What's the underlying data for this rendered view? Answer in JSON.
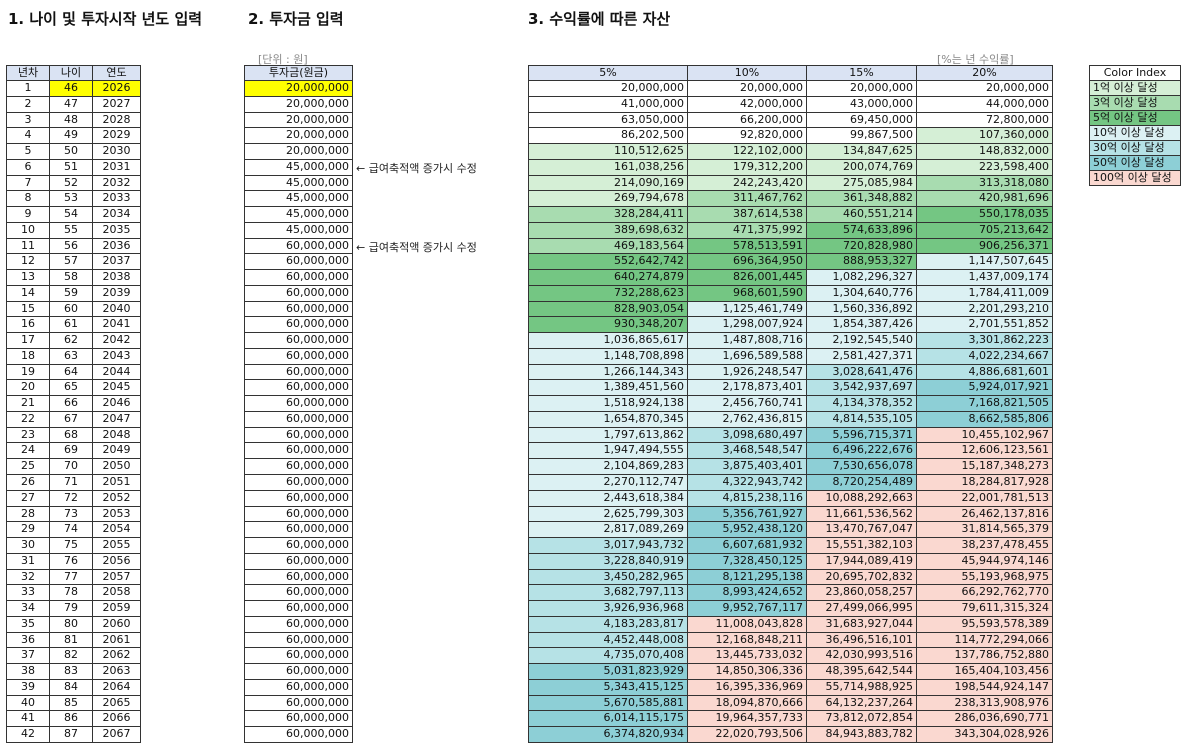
{
  "titles": [
    "1. 나이 및 투자시작 년도 입력",
    "2. 투자금 입력",
    "3. 수익률에 따른 자산"
  ],
  "unit_note": "[단위 : 원]",
  "rate_note": "[%는 년 수익률]",
  "annotations": [
    "← 급여축적액 증가시 수정",
    "← 급여축적액 증가시 수정"
  ],
  "table1": {
    "headers": [
      "년차",
      "나이",
      "연도"
    ],
    "rows": [
      [
        "1",
        "46",
        "2026"
      ],
      [
        "2",
        "47",
        "2027"
      ],
      [
        "3",
        "48",
        "2028"
      ],
      [
        "4",
        "49",
        "2029"
      ],
      [
        "5",
        "50",
        "2030"
      ],
      [
        "6",
        "51",
        "2031"
      ],
      [
        "7",
        "52",
        "2032"
      ],
      [
        "8",
        "53",
        "2033"
      ],
      [
        "9",
        "54",
        "2034"
      ],
      [
        "10",
        "55",
        "2035"
      ],
      [
        "11",
        "56",
        "2036"
      ],
      [
        "12",
        "57",
        "2037"
      ],
      [
        "13",
        "58",
        "2038"
      ],
      [
        "14",
        "59",
        "2039"
      ],
      [
        "15",
        "60",
        "2040"
      ],
      [
        "16",
        "61",
        "2041"
      ],
      [
        "17",
        "62",
        "2042"
      ],
      [
        "18",
        "63",
        "2043"
      ],
      [
        "19",
        "64",
        "2044"
      ],
      [
        "20",
        "65",
        "2045"
      ],
      [
        "21",
        "66",
        "2046"
      ],
      [
        "22",
        "67",
        "2047"
      ],
      [
        "23",
        "68",
        "2048"
      ],
      [
        "24",
        "69",
        "2049"
      ],
      [
        "25",
        "70",
        "2050"
      ],
      [
        "26",
        "71",
        "2051"
      ],
      [
        "27",
        "72",
        "2052"
      ],
      [
        "28",
        "73",
        "2053"
      ],
      [
        "29",
        "74",
        "2054"
      ],
      [
        "30",
        "75",
        "2055"
      ],
      [
        "31",
        "76",
        "2056"
      ],
      [
        "32",
        "77",
        "2057"
      ],
      [
        "33",
        "78",
        "2058"
      ],
      [
        "34",
        "79",
        "2059"
      ],
      [
        "35",
        "80",
        "2060"
      ],
      [
        "36",
        "81",
        "2061"
      ],
      [
        "37",
        "82",
        "2062"
      ],
      [
        "38",
        "83",
        "2063"
      ],
      [
        "39",
        "84",
        "2064"
      ],
      [
        "40",
        "85",
        "2065"
      ],
      [
        "41",
        "86",
        "2066"
      ],
      [
        "42",
        "87",
        "2067"
      ]
    ]
  },
  "table2": {
    "header": "투자금(원금)",
    "rows": [
      "20,000,000",
      "20,000,000",
      "20,000,000",
      "20,000,000",
      "20,000,000",
      "45,000,000",
      "45,000,000",
      "45,000,000",
      "45,000,000",
      "45,000,000",
      "60,000,000",
      "60,000,000",
      "60,000,000",
      "60,000,000",
      "60,000,000",
      "60,000,000",
      "60,000,000",
      "60,000,000",
      "60,000,000",
      "60,000,000",
      "60,000,000",
      "60,000,000",
      "60,000,000",
      "60,000,000",
      "60,000,000",
      "60,000,000",
      "60,000,000",
      "60,000,000",
      "60,000,000",
      "60,000,000",
      "60,000,000",
      "60,000,000",
      "60,000,000",
      "60,000,000",
      "60,000,000",
      "60,000,000",
      "60,000,000",
      "60,000,000",
      "60,000,000",
      "60,000,000",
      "60,000,000",
      "60,000,000"
    ]
  },
  "table3": {
    "headers": [
      "5%",
      "10%",
      "15%",
      "20%"
    ],
    "rows": [
      [
        "20,000,000",
        "20,000,000",
        "20,000,000",
        "20,000,000"
      ],
      [
        "41,000,000",
        "42,000,000",
        "43,000,000",
        "44,000,000"
      ],
      [
        "63,050,000",
        "66,200,000",
        "69,450,000",
        "72,800,000"
      ],
      [
        "86,202,500",
        "92,820,000",
        "99,867,500",
        "107,360,000"
      ],
      [
        "110,512,625",
        "122,102,000",
        "134,847,625",
        "148,832,000"
      ],
      [
        "161,038,256",
        "179,312,200",
        "200,074,769",
        "223,598,400"
      ],
      [
        "214,090,169",
        "242,243,420",
        "275,085,984",
        "313,318,080"
      ],
      [
        "269,794,678",
        "311,467,762",
        "361,348,882",
        "420,981,696"
      ],
      [
        "328,284,411",
        "387,614,538",
        "460,551,214",
        "550,178,035"
      ],
      [
        "389,698,632",
        "471,375,992",
        "574,633,896",
        "705,213,642"
      ],
      [
        "469,183,564",
        "578,513,591",
        "720,828,980",
        "906,256,371"
      ],
      [
        "552,642,742",
        "696,364,950",
        "888,953,327",
        "1,147,507,645"
      ],
      [
        "640,274,879",
        "826,001,445",
        "1,082,296,327",
        "1,437,009,174"
      ],
      [
        "732,288,623",
        "968,601,590",
        "1,304,640,776",
        "1,784,411,009"
      ],
      [
        "828,903,054",
        "1,125,461,749",
        "1,560,336,892",
        "2,201,293,210"
      ],
      [
        "930,348,207",
        "1,298,007,924",
        "1,854,387,426",
        "2,701,551,852"
      ],
      [
        "1,036,865,617",
        "1,487,808,716",
        "2,192,545,540",
        "3,301,862,223"
      ],
      [
        "1,148,708,898",
        "1,696,589,588",
        "2,581,427,371",
        "4,022,234,667"
      ],
      [
        "1,266,144,343",
        "1,926,248,547",
        "3,028,641,476",
        "4,886,681,601"
      ],
      [
        "1,389,451,560",
        "2,178,873,401",
        "3,542,937,697",
        "5,924,017,921"
      ],
      [
        "1,518,924,138",
        "2,456,760,741",
        "4,134,378,352",
        "7,168,821,505"
      ],
      [
        "1,654,870,345",
        "2,762,436,815",
        "4,814,535,105",
        "8,662,585,806"
      ],
      [
        "1,797,613,862",
        "3,098,680,497",
        "5,596,715,371",
        "10,455,102,967"
      ],
      [
        "1,947,494,555",
        "3,468,548,547",
        "6,496,222,676",
        "12,606,123,561"
      ],
      [
        "2,104,869,283",
        "3,875,403,401",
        "7,530,656,078",
        "15,187,348,273"
      ],
      [
        "2,270,112,747",
        "4,322,943,742",
        "8,720,254,489",
        "18,284,817,928"
      ],
      [
        "2,443,618,384",
        "4,815,238,116",
        "10,088,292,663",
        "22,001,781,513"
      ],
      [
        "2,625,799,303",
        "5,356,761,927",
        "11,661,536,562",
        "26,462,137,816"
      ],
      [
        "2,817,089,269",
        "5,952,438,120",
        "13,470,767,047",
        "31,814,565,379"
      ],
      [
        "3,017,943,732",
        "6,607,681,932",
        "15,551,382,103",
        "38,237,478,455"
      ],
      [
        "3,228,840,919",
        "7,328,450,125",
        "17,944,089,419",
        "45,944,974,146"
      ],
      [
        "3,450,282,965",
        "8,121,295,138",
        "20,695,702,832",
        "55,193,968,975"
      ],
      [
        "3,682,797,113",
        "8,993,424,652",
        "23,860,058,257",
        "66,292,762,770"
      ],
      [
        "3,926,936,968",
        "9,952,767,117",
        "27,499,066,995",
        "79,611,315,324"
      ],
      [
        "4,183,283,817",
        "11,008,043,828",
        "31,683,927,044",
        "95,593,578,389"
      ],
      [
        "4,452,448,008",
        "12,168,848,211",
        "36,496,516,101",
        "114,772,294,066"
      ],
      [
        "4,735,070,408",
        "13,445,733,032",
        "42,030,993,516",
        "137,786,752,880"
      ],
      [
        "5,031,823,929",
        "14,850,306,336",
        "48,395,642,544",
        "165,404,103,456"
      ],
      [
        "5,343,415,125",
        "16,395,336,969",
        "55,714,988,925",
        "198,544,924,147"
      ],
      [
        "5,670,585,881",
        "18,094,870,666",
        "64,132,237,264",
        "238,313,908,976"
      ],
      [
        "6,014,115,175",
        "19,964,357,733",
        "73,812,072,854",
        "286,036,690,771"
      ],
      [
        "6,374,820,934",
        "22,020,793,506",
        "84,943,883,782",
        "343,304,028,926"
      ]
    ]
  },
  "color_index": {
    "title": "Color Index",
    "items": [
      {
        "label": "1억 이상 달성",
        "threshold": 100000000,
        "color": "#d5efd6"
      },
      {
        "label": "3억 이상 달성",
        "threshold": 300000000,
        "color": "#a8dcb0"
      },
      {
        "label": "5억 이상 달성",
        "threshold": 500000000,
        "color": "#74c683"
      },
      {
        "label": "10억 이상 달성",
        "threshold": 1000000000,
        "color": "#dcf1f3"
      },
      {
        "label": "30억 이상 달성",
        "threshold": 3000000000,
        "color": "#b6e2e6"
      },
      {
        "label": "50억 이상 달성",
        "threshold": 5000000000,
        "color": "#8dcfd6"
      },
      {
        "label": "100억 이상 달성",
        "threshold": 10000000000,
        "color": "#fad8d0"
      }
    ]
  }
}
